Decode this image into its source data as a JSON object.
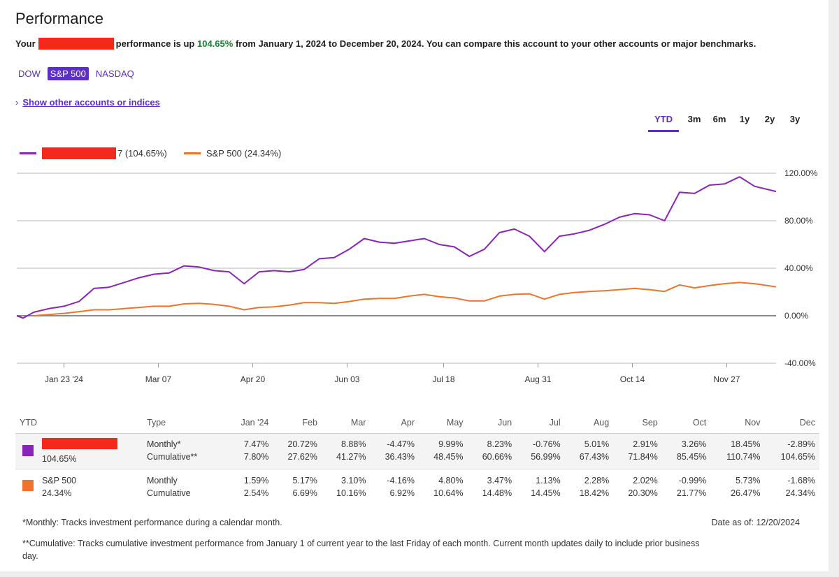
{
  "title": "Performance",
  "summary": {
    "prefix": "Your",
    "middle": "performance is up",
    "percent": "104.65%",
    "suffix": "from January 1, 2024 to December 20, 2024. You can compare this account to your other accounts or major benchmarks."
  },
  "benchmarks": [
    "DOW",
    "S&P 500",
    "NASDAQ"
  ],
  "benchmark_selected": "S&P 500",
  "show_other_label": "Show other accounts or indices",
  "ranges": [
    "YTD",
    "3m",
    "6m",
    "1y",
    "2y",
    "3y"
  ],
  "range_selected": "YTD",
  "legend": {
    "account_label": "7 (104.65%)",
    "benchmark_label": "S&P 500 (24.34%)"
  },
  "colors": {
    "account": "#8a23b8",
    "benchmark": "#ee7428",
    "accent": "#5b2fc4",
    "positive": "#1b7d31",
    "redaction": "#f5291b"
  },
  "chart_data": {
    "type": "line",
    "x_ticks": [
      "Jan 23 '24",
      "Mar 07",
      "Apr 20",
      "Jun 03",
      "Jul 18",
      "Aug 31",
      "Oct 14",
      "Nov 27"
    ],
    "y_ticks": [
      "120.00%",
      "80.00%",
      "40.00%",
      "0.00%",
      "-40.00%"
    ],
    "ylim": [
      -40,
      120
    ],
    "xlim": [
      "2024-01-01",
      "2024-12-20"
    ],
    "grid": true,
    "legend_position": "top-left",
    "series": [
      {
        "name": "7 (104.65%)",
        "points": [
          [
            "2024-01-01",
            0
          ],
          [
            "2024-01-04",
            -2
          ],
          [
            "2024-01-09",
            3
          ],
          [
            "2024-01-16",
            6
          ],
          [
            "2024-01-23",
            8
          ],
          [
            "2024-01-30",
            12
          ],
          [
            "2024-02-06",
            23
          ],
          [
            "2024-02-13",
            24
          ],
          [
            "2024-02-20",
            28
          ],
          [
            "2024-02-27",
            32
          ],
          [
            "2024-03-05",
            35
          ],
          [
            "2024-03-12",
            36
          ],
          [
            "2024-03-19",
            42
          ],
          [
            "2024-03-26",
            41
          ],
          [
            "2024-04-02",
            38
          ],
          [
            "2024-04-09",
            37
          ],
          [
            "2024-04-16",
            27
          ],
          [
            "2024-04-23",
            37
          ],
          [
            "2024-04-30",
            38
          ],
          [
            "2024-05-07",
            37
          ],
          [
            "2024-05-14",
            39
          ],
          [
            "2024-05-21",
            48
          ],
          [
            "2024-05-28",
            49
          ],
          [
            "2024-06-04",
            56
          ],
          [
            "2024-06-11",
            65
          ],
          [
            "2024-06-18",
            62
          ],
          [
            "2024-06-25",
            61
          ],
          [
            "2024-07-02",
            63
          ],
          [
            "2024-07-09",
            65
          ],
          [
            "2024-07-16",
            60
          ],
          [
            "2024-07-23",
            58
          ],
          [
            "2024-07-30",
            50
          ],
          [
            "2024-08-06",
            56
          ],
          [
            "2024-08-13",
            70
          ],
          [
            "2024-08-20",
            73
          ],
          [
            "2024-08-27",
            67
          ],
          [
            "2024-09-03",
            54
          ],
          [
            "2024-09-10",
            67
          ],
          [
            "2024-09-17",
            69
          ],
          [
            "2024-09-24",
            72
          ],
          [
            "2024-10-01",
            77
          ],
          [
            "2024-10-08",
            83
          ],
          [
            "2024-10-15",
            86
          ],
          [
            "2024-10-22",
            85
          ],
          [
            "2024-10-29",
            80
          ],
          [
            "2024-11-05",
            104
          ],
          [
            "2024-11-12",
            103
          ],
          [
            "2024-11-19",
            110
          ],
          [
            "2024-11-26",
            111
          ],
          [
            "2024-12-03",
            117
          ],
          [
            "2024-12-10",
            109
          ],
          [
            "2024-12-20",
            104.65
          ]
        ]
      },
      {
        "name": "S&P 500 (24.34%)",
        "points": [
          [
            "2024-01-09",
            0
          ],
          [
            "2024-01-16",
            1
          ],
          [
            "2024-01-23",
            2
          ],
          [
            "2024-01-30",
            3.5
          ],
          [
            "2024-02-06",
            5
          ],
          [
            "2024-02-13",
            5
          ],
          [
            "2024-02-20",
            6
          ],
          [
            "2024-02-27",
            7
          ],
          [
            "2024-03-05",
            8
          ],
          [
            "2024-03-12",
            8
          ],
          [
            "2024-03-19",
            10
          ],
          [
            "2024-03-26",
            10.5
          ],
          [
            "2024-04-02",
            9.5
          ],
          [
            "2024-04-09",
            8
          ],
          [
            "2024-04-16",
            5
          ],
          [
            "2024-04-23",
            7
          ],
          [
            "2024-04-30",
            7.5
          ],
          [
            "2024-05-07",
            9
          ],
          [
            "2024-05-14",
            11
          ],
          [
            "2024-05-21",
            11
          ],
          [
            "2024-05-28",
            10.5
          ],
          [
            "2024-06-04",
            12
          ],
          [
            "2024-06-11",
            14
          ],
          [
            "2024-06-18",
            14.5
          ],
          [
            "2024-06-25",
            14.5
          ],
          [
            "2024-07-02",
            16.5
          ],
          [
            "2024-07-09",
            18
          ],
          [
            "2024-07-16",
            16
          ],
          [
            "2024-07-23",
            15
          ],
          [
            "2024-07-30",
            12.5
          ],
          [
            "2024-08-06",
            12.5
          ],
          [
            "2024-08-13",
            16.5
          ],
          [
            "2024-08-20",
            18
          ],
          [
            "2024-08-27",
            18.5
          ],
          [
            "2024-09-03",
            14
          ],
          [
            "2024-09-10",
            18
          ],
          [
            "2024-09-17",
            19.5
          ],
          [
            "2024-09-24",
            20.5
          ],
          [
            "2024-10-01",
            21
          ],
          [
            "2024-10-08",
            22
          ],
          [
            "2024-10-15",
            23
          ],
          [
            "2024-10-22",
            22
          ],
          [
            "2024-10-29",
            20.5
          ],
          [
            "2024-11-05",
            26
          ],
          [
            "2024-11-12",
            23.5
          ],
          [
            "2024-11-19",
            25.5
          ],
          [
            "2024-11-26",
            27
          ],
          [
            "2024-12-03",
            28
          ],
          [
            "2024-12-10",
            27
          ],
          [
            "2024-12-20",
            24.34
          ]
        ]
      }
    ]
  },
  "table": {
    "headers": [
      "YTD",
      "Type",
      "Jan '24",
      "Feb",
      "Mar",
      "Apr",
      "May",
      "Jun",
      "Jul",
      "Aug",
      "Sep",
      "Oct",
      "Nov",
      "Dec"
    ],
    "rows": [
      {
        "name": "",
        "total": "104.65%",
        "type1": "Monthly*",
        "type2": "Cumulative**",
        "monthly": [
          "7.47%",
          "20.72%",
          "8.88%",
          "-4.47%",
          "9.99%",
          "8.23%",
          "-0.76%",
          "5.01%",
          "2.91%",
          "3.26%",
          "18.45%",
          "-2.89%"
        ],
        "cumulative": [
          "7.80%",
          "27.62%",
          "41.27%",
          "36.43%",
          "48.45%",
          "60.66%",
          "56.99%",
          "67.43%",
          "71.84%",
          "85.45%",
          "110.74%",
          "104.65%"
        ]
      },
      {
        "name": "S&P 500",
        "total": "24.34%",
        "type1": "Monthly",
        "type2": "Cumulative",
        "monthly": [
          "1.59%",
          "5.17%",
          "3.10%",
          "-4.16%",
          "4.80%",
          "3.47%",
          "1.13%",
          "2.28%",
          "2.02%",
          "-0.99%",
          "5.73%",
          "-1.68%"
        ],
        "cumulative": [
          "2.54%",
          "6.69%",
          "10.16%",
          "6.92%",
          "10.64%",
          "14.48%",
          "14.45%",
          "18.42%",
          "20.30%",
          "21.77%",
          "26.47%",
          "24.34%"
        ]
      }
    ]
  },
  "footnotes": {
    "monthly": "*Monthly: Tracks investment performance during a calendar month.",
    "cumulative": "**Cumulative: Tracks cumulative investment performance from January 1 of current year to the last Friday of each month. Current month updates daily to include prior business day.",
    "date_as_of": "Date as of: 12/20/2024"
  }
}
